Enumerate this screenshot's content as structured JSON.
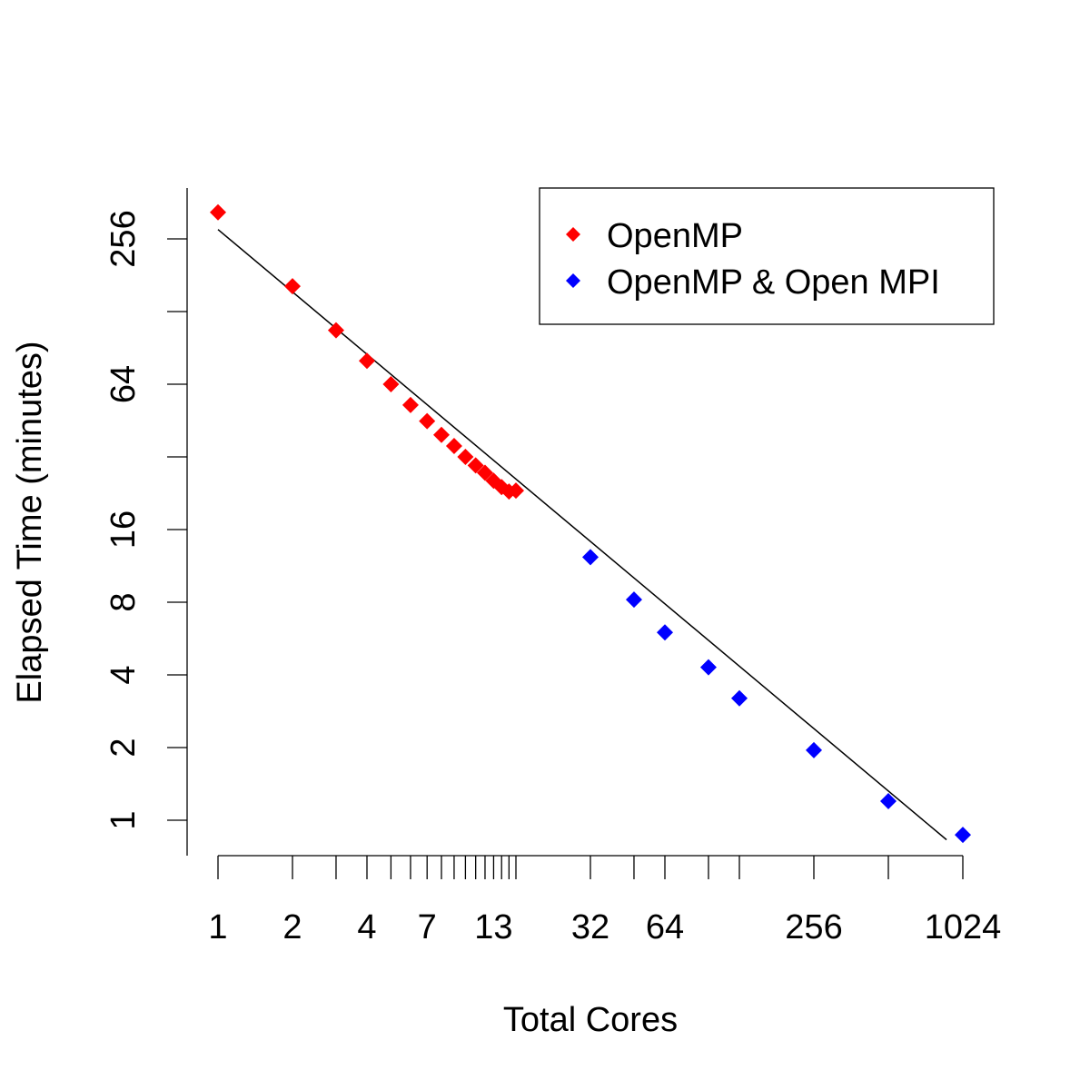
{
  "chart_data": {
    "type": "scatter",
    "xscale": "log2",
    "yscale": "log2",
    "xlabel": "Total Cores",
    "ylabel": "Elapsed Time (minutes)",
    "xlim": [
      1,
      1024
    ],
    "ylim": [
      0.83,
      400
    ],
    "x_tick_marks": [
      1,
      2,
      3,
      4,
      5,
      6,
      7,
      8,
      9,
      10,
      11,
      12,
      13,
      14,
      15,
      16,
      32,
      48,
      64,
      96,
      128,
      256,
      512,
      1024
    ],
    "x_tick_labels": [
      {
        "value": 1,
        "label": "1"
      },
      {
        "value": 2,
        "label": "2"
      },
      {
        "value": 4,
        "label": "4"
      },
      {
        "value": 7,
        "label": "7"
      },
      {
        "value": 13,
        "label": "13"
      },
      {
        "value": 32,
        "label": "32"
      },
      {
        "value": 64,
        "label": "64"
      },
      {
        "value": 256,
        "label": "256"
      },
      {
        "value": 1024,
        "label": "1024"
      }
    ],
    "y_tick_marks": [
      1,
      2,
      4,
      8,
      16,
      32,
      64,
      128,
      256
    ],
    "y_tick_labels": [
      {
        "value": 1,
        "label": "1"
      },
      {
        "value": 2,
        "label": "2"
      },
      {
        "value": 4,
        "label": "4"
      },
      {
        "value": 8,
        "label": "8"
      },
      {
        "value": 16,
        "label": "16"
      },
      {
        "value": 64,
        "label": "64"
      },
      {
        "value": 256,
        "label": "256"
      }
    ],
    "series": [
      {
        "name": "OpenMP",
        "color": "#ff0000",
        "marker": "diamond",
        "points": [
          {
            "x": 1,
            "y": 330
          },
          {
            "x": 2,
            "y": 163
          },
          {
            "x": 3,
            "y": 107
          },
          {
            "x": 4,
            "y": 80
          },
          {
            "x": 5,
            "y": 64
          },
          {
            "x": 6,
            "y": 52.5
          },
          {
            "x": 7,
            "y": 45
          },
          {
            "x": 8,
            "y": 39.5
          },
          {
            "x": 9,
            "y": 35.5
          },
          {
            "x": 10,
            "y": 32
          },
          {
            "x": 11,
            "y": 29.5
          },
          {
            "x": 12,
            "y": 27.5
          },
          {
            "x": 13,
            "y": 25.5
          },
          {
            "x": 14,
            "y": 24
          },
          {
            "x": 15,
            "y": 23
          },
          {
            "x": 16,
            "y": 23.2
          }
        ]
      },
      {
        "name": "OpenMP & Open MPI",
        "color": "#0000ff",
        "marker": "diamond",
        "points": [
          {
            "x": 32,
            "y": 12.3
          },
          {
            "x": 48,
            "y": 8.2
          },
          {
            "x": 64,
            "y": 6.0
          },
          {
            "x": 96,
            "y": 4.3
          },
          {
            "x": 128,
            "y": 3.2
          },
          {
            "x": 256,
            "y": 1.95
          },
          {
            "x": 512,
            "y": 1.2
          },
          {
            "x": 1024,
            "y": 0.87
          }
        ]
      }
    ],
    "fit_line": {
      "x_start": 1,
      "y_start": 280,
      "x_end": 880,
      "y_end": 0.83,
      "color": "#000000"
    },
    "legend": {
      "position": "top-right"
    }
  }
}
